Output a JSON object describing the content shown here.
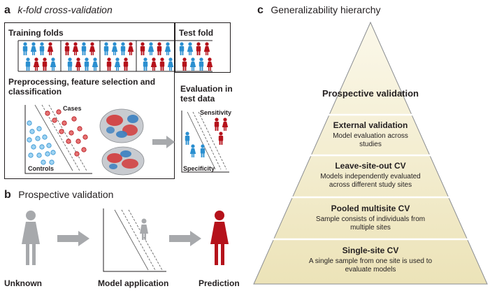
{
  "panel_a": {
    "letter": "a",
    "title": "k-fold cross-validation",
    "training_folds": "Training folds",
    "test_fold": "Test fold",
    "preprocessing": "Preprocessing, feature selection and classification",
    "cases": "Cases",
    "controls": "Controls",
    "evaluation": "Evaluation in test data",
    "sensitivity": "Sensitivity",
    "specificity": "Specificity"
  },
  "panel_b": {
    "letter": "b",
    "title": "Prospective validation",
    "unknown": "Unknown",
    "model_application": "Model application",
    "prediction": "Prediction"
  },
  "panel_c": {
    "letter": "c",
    "title": "Generalizability hierarchy",
    "levels": [
      {
        "title": "Prospective validation",
        "desc": ""
      },
      {
        "title": "External validation",
        "desc": "Model evaluation across studies"
      },
      {
        "title": "Leave-site-out CV",
        "desc": "Models independently evaluated across different study sites"
      },
      {
        "title": "Pooled multisite CV",
        "desc": "Sample consists of individuals from multiple sites"
      },
      {
        "title": "Single-site CV",
        "desc": "A single sample from one site is used to evaluate models"
      }
    ]
  },
  "colors": {
    "case_red": "#b5121b",
    "control_blue": "#2b8fd0",
    "unknown_gray": "#a7a9ac",
    "pyramid_fill": "#f3edcf"
  }
}
